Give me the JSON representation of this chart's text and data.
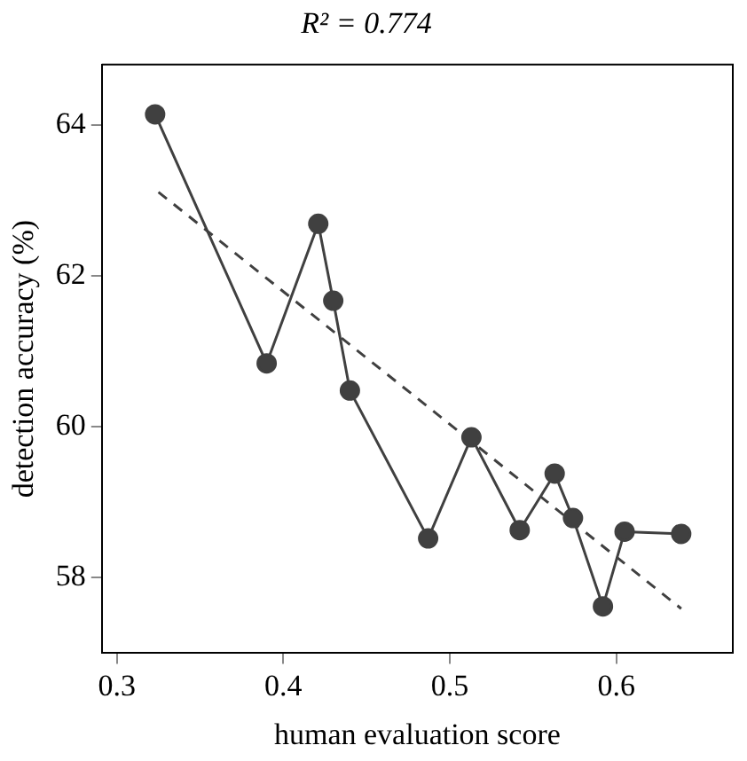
{
  "chart_data": {
    "type": "line",
    "title": "R² = 0.774",
    "xlabel": "human evaluation score",
    "ylabel": "detection accuracy (%)",
    "xlim": [
      0.291,
      0.67
    ],
    "xticks": [
      {
        "value": 0.3,
        "label": "0.3"
      },
      {
        "value": 0.4,
        "label": "0.4"
      },
      {
        "value": 0.5,
        "label": "0.5"
      },
      {
        "value": 0.6,
        "label": "0.6"
      }
    ],
    "ylim": [
      57.0,
      64.8
    ],
    "yticks": [
      58,
      60,
      62,
      64
    ],
    "grid": false,
    "legend": false,
    "series": [
      {
        "color": "#404040",
        "marker": "circle",
        "line_style": "solid",
        "x": [
          0.323,
          0.39,
          0.421,
          0.43,
          0.44,
          0.487,
          0.513,
          0.542,
          0.563,
          0.574,
          0.592,
          0.605,
          0.639
        ],
        "values": [
          64.14,
          60.84,
          62.69,
          61.67,
          60.48,
          58.52,
          59.86,
          58.63,
          59.38,
          58.79,
          57.62,
          58.61,
          58.58
        ]
      },
      {
        "color": "#404040",
        "marker": "none",
        "line_style": "dashed",
        "x": [
          0.325,
          0.639
        ],
        "values": [
          63.11,
          57.59
        ]
      }
    ]
  }
}
